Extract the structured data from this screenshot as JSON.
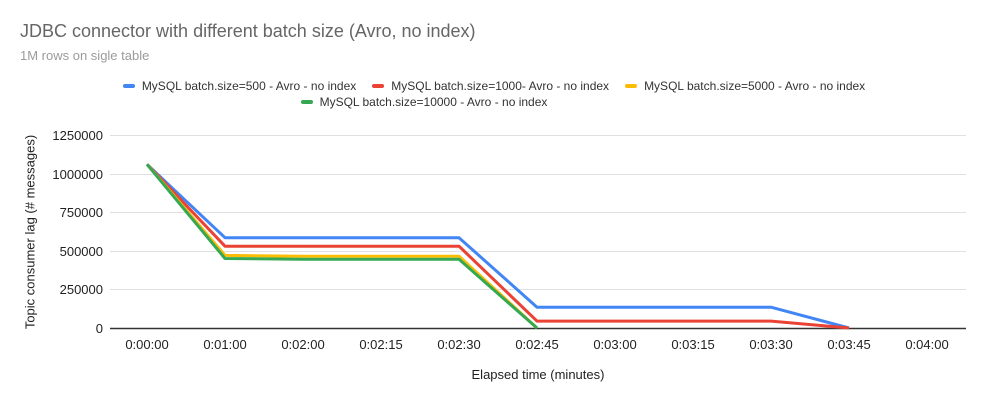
{
  "header": {
    "title": "JDBC connector with different batch size (Avro, no index)",
    "subtitle": "1M rows on sigle table"
  },
  "chart_data": {
    "type": "line",
    "title": "JDBC connector with different batch size (Avro, no index)",
    "subtitle": "1M rows on sigle table",
    "xlabel": "Elapsed time (minutes)",
    "ylabel": "Topic consumer lag (# messages)",
    "x_categories": [
      "0:00:00",
      "0:01:00",
      "0:02:00",
      "0:02:15",
      "0:02:30",
      "0:02:45",
      "0:03:00",
      "0:03:15",
      "0:03:30",
      "0:03:45",
      "0:04:00"
    ],
    "y_ticks": [
      0,
      250000,
      500000,
      750000,
      1000000,
      1250000
    ],
    "ylim": [
      0,
      1250000
    ],
    "grid": true,
    "legend_position": "top",
    "legend_rows": [
      [
        0,
        1,
        2
      ],
      [
        3
      ]
    ],
    "series": [
      {
        "name": "MySQL batch.size=500 - Avro - no index",
        "color": "#4285F4",
        "values": [
          1060000,
          585000,
          585000,
          585000,
          585000,
          135000,
          135000,
          135000,
          135000,
          0,
          null
        ]
      },
      {
        "name": "MySQL batch.size=1000- Avro - no index",
        "color": "#EA4335",
        "values": [
          1060000,
          530000,
          530000,
          530000,
          530000,
          45000,
          45000,
          45000,
          45000,
          0,
          null
        ]
      },
      {
        "name": "MySQL batch.size=5000 - Avro - no index",
        "color": "#FBBC04",
        "values": [
          1060000,
          470000,
          465000,
          465000,
          465000,
          0,
          null,
          null,
          null,
          null,
          null
        ]
      },
      {
        "name": "MySQL batch.size=10000 - Avro - no index",
        "color": "#34A853",
        "values": [
          1060000,
          450000,
          445000,
          445000,
          445000,
          0,
          null,
          null,
          null,
          null,
          null
        ]
      }
    ],
    "colors": {
      "gridline": "#e0e0e0",
      "baseline": "#333333",
      "tick_label": "#222222"
    }
  }
}
